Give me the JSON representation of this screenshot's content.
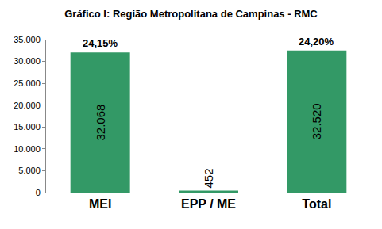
{
  "chart_data": {
    "type": "bar",
    "title": "Gráfico I: Região Metropolitana de Campinas - RMC",
    "categories": [
      "MEI",
      "EPP / ME",
      "Total"
    ],
    "values": [
      32068,
      452,
      32520
    ],
    "value_labels": [
      "32.068",
      "452",
      "32.520"
    ],
    "data_labels": true,
    "color": "#339966",
    "ylim": [
      0,
      35000
    ],
    "yticks": [
      0,
      {
        "value": 5000,
        "label": "5.000"
      },
      {
        "value": 10000,
        "label": "10.000"
      },
      {
        "value": 15000,
        "label": "15.000"
      },
      {
        "value": 20000,
        "label": "20.000"
      },
      {
        "value": 25000,
        "label": "25.000"
      },
      {
        "value": 30000,
        "label": "30.000"
      },
      {
        "value": 35000,
        "label": "35.000"
      }
    ],
    "grid": false,
    "annotations": [
      {
        "category": "MEI",
        "text": "24,15%"
      },
      {
        "category": "Total",
        "text": "24,20%"
      }
    ]
  }
}
